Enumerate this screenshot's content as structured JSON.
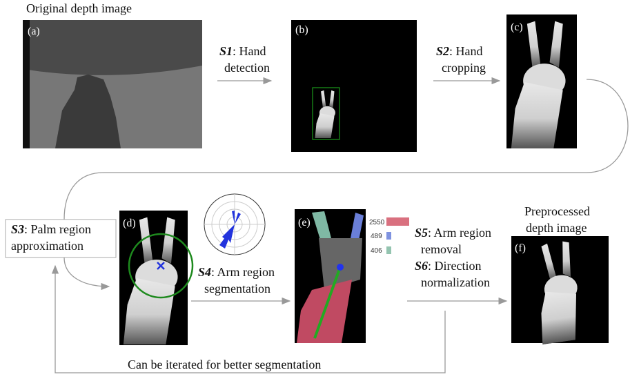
{
  "caption_original": "Original depth image",
  "panel_labels": [
    "(a)",
    "(b)",
    "(c)",
    "(d)",
    "(e)",
    "(f)"
  ],
  "steps": [
    {
      "label": "S1",
      "text": [
        ": Hand",
        "detection"
      ]
    },
    {
      "label": "S2",
      "text": [
        ": Hand",
        "cropping"
      ]
    },
    {
      "label": "S3",
      "text": [
        ": Palm region",
        "approximation"
      ]
    },
    {
      "label": "S4",
      "text": [
        ": Arm region",
        "segmentation"
      ]
    },
    {
      "label": "S5",
      "text": [
        ": Arm region",
        "removal"
      ]
    },
    {
      "label": "S6",
      "text": [
        ": Direction",
        "normalization"
      ]
    }
  ],
  "caption_result": [
    "Preprocessed",
    "depth image"
  ],
  "loop_note": "Can be iterated for better segmentation",
  "histogram_counts": [
    2550,
    489,
    406
  ]
}
